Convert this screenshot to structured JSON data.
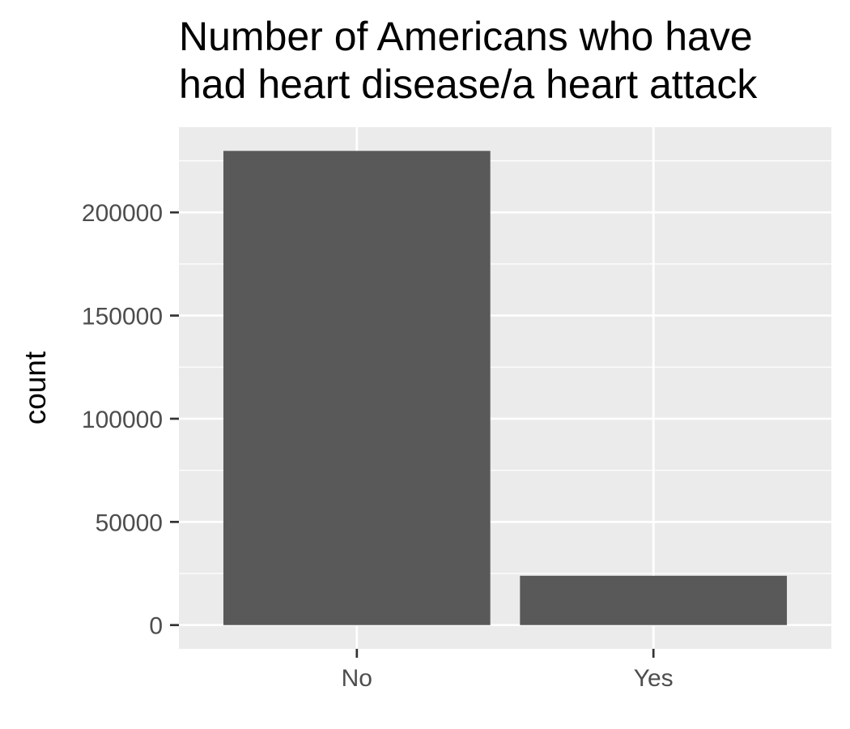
{
  "chart_data": {
    "type": "bar",
    "title_lines": [
      "Number of Americans who have",
      "had heart disease/a heart attack"
    ],
    "xlabel": "",
    "ylabel": "count",
    "categories": [
      "No",
      "Yes"
    ],
    "values": [
      229800,
      23900
    ],
    "yticks": [
      0,
      50000,
      100000,
      150000,
      200000
    ],
    "ytick_labels": [
      "0",
      "50000",
      "100000",
      "150000",
      "200000"
    ],
    "ylim": [
      -11500,
      241300
    ],
    "grid": true,
    "legend": "none",
    "colors": {
      "panel": "#ebebeb",
      "grid": "#ffffff",
      "bar": "#595959",
      "tick_text": "#4d4d4d",
      "tick_mark": "#333333"
    }
  }
}
